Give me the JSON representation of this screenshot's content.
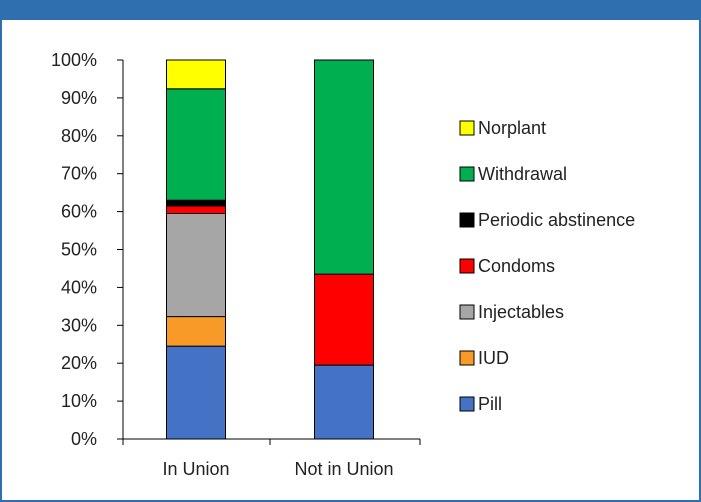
{
  "chart_data": {
    "type": "bar",
    "stacked": true,
    "categories": [
      "In Union",
      "Not in Union"
    ],
    "ylim": [
      0,
      100
    ],
    "yticks": [
      "0%",
      "10%",
      "20%",
      "30%",
      "40%",
      "50%",
      "60%",
      "70%",
      "80%",
      "90%",
      "100%"
    ],
    "grid": false,
    "legend_position": "right",
    "series": [
      {
        "name": "Pill",
        "color": "#4472c4",
        "values": [
          24.5,
          19.5
        ]
      },
      {
        "name": "IUD",
        "color": "#f79a28",
        "values": [
          7.8,
          0
        ]
      },
      {
        "name": "Injectables",
        "color": "#a6a6a6",
        "values": [
          27.2,
          0
        ]
      },
      {
        "name": "Condoms",
        "color": "#ff0000",
        "values": [
          2.0,
          24.0
        ]
      },
      {
        "name": "Periodic abstinence",
        "color": "#000000",
        "values": [
          1.5,
          0
        ]
      },
      {
        "name": "Withdrawal",
        "color": "#00b050",
        "values": [
          29.4,
          56.5
        ]
      },
      {
        "name": "Norplant",
        "color": "#ffff00",
        "values": [
          7.6,
          0
        ]
      }
    ]
  }
}
